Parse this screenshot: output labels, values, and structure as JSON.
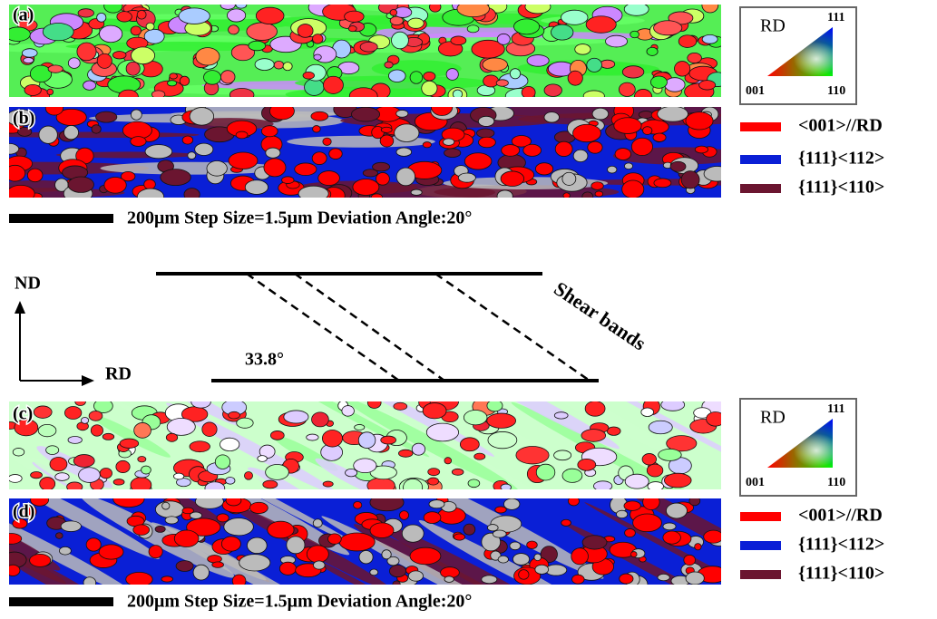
{
  "panels": [
    {
      "label": "(a)"
    },
    {
      "label": "(b)"
    },
    {
      "label": "(c)"
    },
    {
      "label": "(d)"
    }
  ],
  "ipf_keys": [
    {
      "title": "RD",
      "corners": [
        "111",
        "001",
        "110"
      ]
    },
    {
      "title": "RD",
      "corners": [
        "111",
        "001",
        "110"
      ]
    }
  ],
  "legends": [
    {
      "items": [
        {
          "text": "<001>//RD",
          "color": "#ff0000"
        },
        {
          "text": "{111}<112>",
          "color": "#0a1fd6"
        },
        {
          "text": "{111}<110>",
          "color": "#6b1530"
        }
      ]
    },
    {
      "items": [
        {
          "text": "<001>//RD",
          "color": "#ff0000"
        },
        {
          "text": "{111}<112>",
          "color": "#0a1fd6"
        },
        {
          "text": "{111}<110>",
          "color": "#6b1530"
        }
      ]
    }
  ],
  "scale_bars": [
    {
      "text": "200μm  Step Size=1.5μm  Deviation Angle:20°"
    },
    {
      "text": "200μm  Step Size=1.5μm  Deviation Angle:20°"
    }
  ],
  "axes": {
    "nd": "ND",
    "rd": "RD"
  },
  "angle_label": "33.8°",
  "shear_label": "Shear bands"
}
